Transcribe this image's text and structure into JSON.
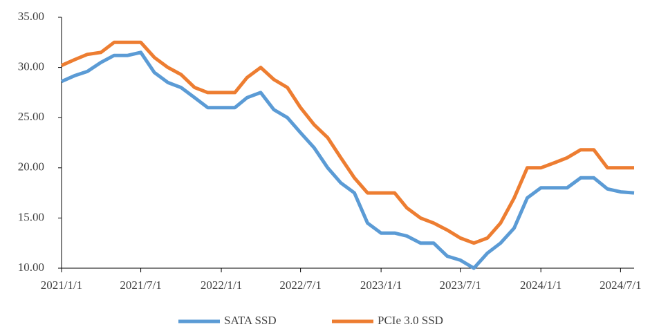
{
  "chart_data": {
    "type": "line",
    "x": [
      "2021/1/1",
      "2021/2/1",
      "2021/3/1",
      "2021/4/1",
      "2021/5/1",
      "2021/6/1",
      "2021/7/1",
      "2021/8/1",
      "2021/9/1",
      "2021/10/1",
      "2021/11/1",
      "2021/12/1",
      "2022/1/1",
      "2022/2/1",
      "2022/3/1",
      "2022/4/1",
      "2022/5/1",
      "2022/6/1",
      "2022/7/1",
      "2022/8/1",
      "2022/9/1",
      "2022/10/1",
      "2022/11/1",
      "2022/12/1",
      "2023/1/1",
      "2023/2/1",
      "2023/3/1",
      "2023/4/1",
      "2023/5/1",
      "2023/6/1",
      "2023/7/1",
      "2023/8/1",
      "2023/9/1",
      "2023/10/1",
      "2023/11/1",
      "2023/12/1",
      "2024/1/1",
      "2024/2/1",
      "2024/3/1",
      "2024/4/1",
      "2024/5/1",
      "2024/6/1",
      "2024/7/1",
      "2024/8/1"
    ],
    "series": [
      {
        "name": "SATA SSD",
        "color": "#5b9bd5",
        "values": [
          28.6,
          29.2,
          29.6,
          30.5,
          31.2,
          31.2,
          31.5,
          29.5,
          28.5,
          28.0,
          27.0,
          26.0,
          26.0,
          26.0,
          27.0,
          27.5,
          25.8,
          25.0,
          23.5,
          22.0,
          20.0,
          18.5,
          17.5,
          14.5,
          13.5,
          13.5,
          13.2,
          12.5,
          12.5,
          11.2,
          10.8,
          10.0,
          11.5,
          12.5,
          14.0,
          17.0,
          18.0,
          18.0,
          18.0,
          19.0,
          19.0,
          17.9,
          17.6,
          17.5
        ]
      },
      {
        "name": "PCIe 3.0 SSD",
        "color": "#ed7d31",
        "values": [
          30.2,
          30.8,
          31.3,
          31.5,
          32.5,
          32.5,
          32.5,
          31.0,
          30.0,
          29.3,
          28.0,
          27.5,
          27.5,
          27.5,
          29.0,
          30.0,
          28.8,
          28.0,
          26.0,
          24.3,
          23.0,
          21.0,
          19.0,
          17.5,
          17.5,
          17.5,
          16.0,
          15.0,
          14.5,
          13.8,
          13.0,
          12.5,
          13.0,
          14.5,
          17.0,
          20.0,
          20.0,
          20.5,
          21.0,
          21.8,
          21.8,
          20.0,
          20.0,
          20.0
        ]
      }
    ],
    "xlim": [
      "2021/1/1",
      "2024/8/1"
    ],
    "xticks": [
      "2021/1/1",
      "2021/7/1",
      "2022/1/1",
      "2022/7/1",
      "2023/1/1",
      "2023/7/1",
      "2024/1/1",
      "2024/7/1"
    ],
    "ylim": [
      10,
      35
    ],
    "yticks": [
      {
        "value": 10,
        "label": "10.00"
      },
      {
        "value": 15,
        "label": "15.00"
      },
      {
        "value": 20,
        "label": "20.00"
      },
      {
        "value": 25,
        "label": "25.00"
      },
      {
        "value": 30,
        "label": "30.00"
      },
      {
        "value": 35,
        "label": "35.00"
      }
    ],
    "legend": "bottom"
  }
}
